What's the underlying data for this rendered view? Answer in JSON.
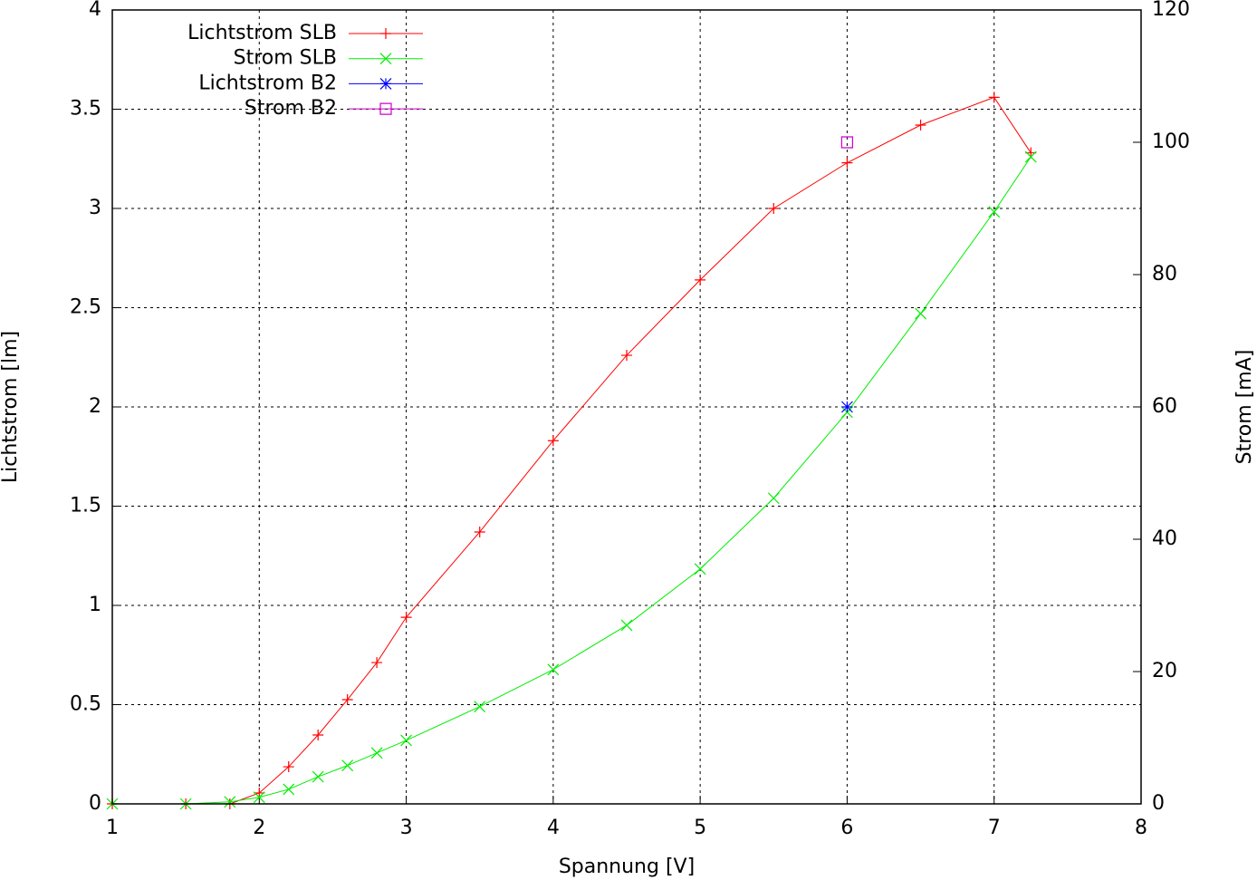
{
  "chart_data": {
    "type": "line",
    "xlabel": "Spannung [V]",
    "ylabel": "Lichtstrom [lm]",
    "y2label": "Strom [mA]",
    "xlim": [
      1,
      8
    ],
    "xticks": [
      1,
      2,
      3,
      4,
      5,
      6,
      7,
      8
    ],
    "ylim": [
      0,
      4
    ],
    "yticks": [
      0,
      0.5,
      1,
      1.5,
      2,
      2.5,
      3,
      3.5,
      4
    ],
    "y2lim": [
      0,
      120
    ],
    "y2ticks": [
      0,
      20,
      40,
      60,
      80,
      100,
      120
    ],
    "grid": true,
    "legend": "top-left",
    "series": [
      {
        "name": "Lichtstrom SLB",
        "color": "#ff0000",
        "marker": "plus",
        "axis": "y",
        "x": [
          1,
          1.5,
          1.8,
          2,
          2.2,
          2.4,
          2.6,
          2.8,
          3,
          3.5,
          4,
          4.5,
          5,
          5.5,
          6,
          6.5,
          7,
          7.25
        ],
        "values": [
          0,
          0,
          0,
          0.055,
          0.187,
          0.347,
          0.525,
          0.712,
          0.94,
          1.37,
          1.83,
          2.26,
          2.64,
          3.0,
          3.23,
          3.42,
          3.56,
          3.28
        ]
      },
      {
        "name": "Strom SLB",
        "color": "#00ee00",
        "marker": "cross",
        "axis": "y2",
        "x": [
          1,
          1.5,
          1.8,
          2,
          2.2,
          2.4,
          2.6,
          2.8,
          3,
          3.5,
          4,
          4.5,
          5,
          5.5,
          6,
          6.5,
          7,
          7.25
        ],
        "values": [
          0,
          0,
          0.3,
          1,
          2.2,
          4.1,
          5.8,
          7.7,
          9.6,
          14.7,
          20.3,
          27,
          35.5,
          46.2,
          59.2,
          74.1,
          89.5,
          97.8
        ]
      },
      {
        "name": "Lichtstrom B2",
        "color": "#0000ff",
        "marker": "star",
        "axis": "y",
        "x": [
          6
        ],
        "values": [
          2.0
        ]
      },
      {
        "name": "Strom B2",
        "color": "#cc00cc",
        "marker": "square",
        "axis": "y2",
        "x": [
          6
        ],
        "values": [
          100
        ]
      }
    ]
  }
}
